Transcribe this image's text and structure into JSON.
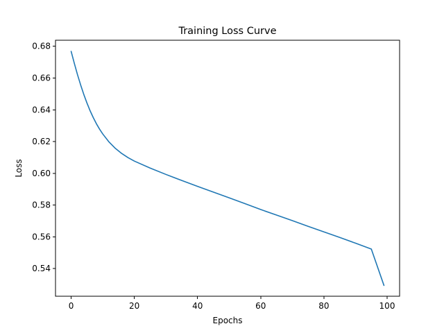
{
  "chart_data": {
    "type": "line",
    "title": "Training Loss Curve",
    "xlabel": "Epochs",
    "ylabel": "Loss",
    "xlim": [
      -4.95,
      103.95
    ],
    "ylim": [
      0.5226,
      0.6838
    ],
    "x_ticks": [
      0,
      20,
      40,
      60,
      80,
      100
    ],
    "y_ticks": [
      0.54,
      0.56,
      0.58,
      0.6,
      0.62,
      0.64,
      0.66,
      0.68
    ],
    "grid": false,
    "series": [
      {
        "name": "loss",
        "color": "#1f77b4",
        "x": [
          0,
          1,
          2,
          3,
          4,
          5,
          6,
          7,
          8,
          9,
          10,
          12,
          14,
          16,
          18,
          20,
          25,
          30,
          35,
          40,
          45,
          50,
          55,
          60,
          65,
          70,
          75,
          80,
          85,
          90,
          95,
          99
        ],
        "values": [
          0.6768,
          0.6693,
          0.6622,
          0.6557,
          0.6497,
          0.6443,
          0.6394,
          0.6351,
          0.6312,
          0.6278,
          0.6248,
          0.6197,
          0.6157,
          0.6125,
          0.6099,
          0.6077,
          0.6033,
          0.5993,
          0.5955,
          0.5918,
          0.5882,
          0.5846,
          0.5809,
          0.5772,
          0.5737,
          0.5702,
          0.5666,
          0.5631,
          0.5596,
          0.556,
          0.5523,
          0.5294
        ]
      }
    ]
  }
}
